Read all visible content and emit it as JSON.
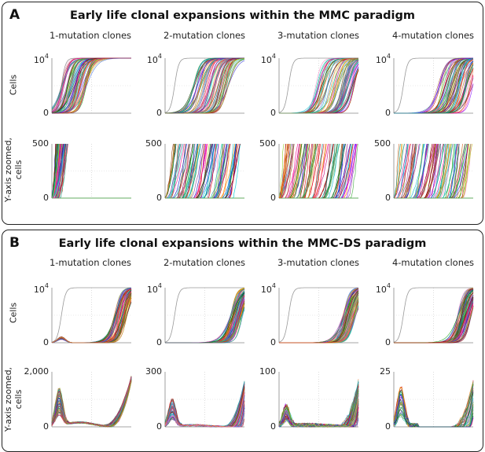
{
  "panels": [
    {
      "label": "A",
      "title": "Early life clonal expansions within the MMC paradigm",
      "rows": [
        {
          "ylabel": "Cells",
          "ylabel_lines": [
            "Cells"
          ]
        },
        {
          "ylabel": "Y-axis zoomed, cells",
          "ylabel_lines": [
            "Y-axis zoomed,",
            "cells"
          ]
        }
      ]
    },
    {
      "label": "B",
      "title": "Early life clonal expansions within the MMC-DS paradigm",
      "rows": [
        {
          "ylabel": "Cells",
          "ylabel_lines": [
            "Cells"
          ]
        },
        {
          "ylabel": "Y-axis zoomed, cells",
          "ylabel_lines": [
            "Y-axis zoomed,",
            "cells"
          ]
        }
      ]
    }
  ],
  "column_titles": [
    "1-mutation clones",
    "2-mutation clones",
    "3-mutation clones",
    "4-mutation clones"
  ],
  "chart_data": [
    {
      "type": "line",
      "panel": "A",
      "row": "full",
      "column_title": "1-mutation clones",
      "ylabel": "Cells",
      "yticks": [
        "0",
        "10^4"
      ],
      "ylim": [
        0,
        10000
      ],
      "series_description": "many colored logistic clone-growth trajectories plus a grey reference curve",
      "midpoints_range": [
        0.12,
        0.45
      ]
    },
    {
      "type": "line",
      "panel": "A",
      "row": "full",
      "column_title": "2-mutation clones",
      "ylabel": "Cells",
      "yticks": [
        "0",
        "10^4"
      ],
      "ylim": [
        0,
        10000
      ],
      "midpoints_range": [
        0.35,
        0.8
      ]
    },
    {
      "type": "line",
      "panel": "A",
      "row": "full",
      "column_title": "3-mutation clones",
      "ylabel": "Cells",
      "yticks": [
        "0",
        "10^4"
      ],
      "ylim": [
        0,
        10000
      ],
      "midpoints_range": [
        0.45,
        0.95
      ]
    },
    {
      "type": "line",
      "panel": "A",
      "row": "full",
      "column_title": "4-mutation clones",
      "ylabel": "Cells",
      "yticks": [
        "0",
        "10^4"
      ],
      "ylim": [
        0,
        10000
      ],
      "midpoints_range": [
        0.55,
        1.0
      ]
    },
    {
      "type": "line",
      "panel": "A",
      "row": "zoomed",
      "ylabel": "Y-axis zoomed, cells",
      "yticks": [
        "0",
        "500"
      ],
      "ylim": [
        0,
        500
      ],
      "reach_range": [
        0.05,
        0.2
      ]
    },
    {
      "type": "line",
      "panel": "A",
      "row": "zoomed",
      "ylabel": "Y-axis zoomed, cells",
      "yticks": [
        "0",
        "500"
      ],
      "ylim": [
        0,
        500
      ],
      "reach_range": [
        0.1,
        0.95
      ]
    },
    {
      "type": "line",
      "panel": "A",
      "row": "zoomed",
      "ylabel": "Y-axis zoomed, cells",
      "yticks": [
        "0",
        "500"
      ],
      "ylim": [
        0,
        500
      ],
      "reach_range": [
        0.05,
        1.0
      ]
    },
    {
      "type": "line",
      "panel": "A",
      "row": "zoomed",
      "ylabel": "Y-axis zoomed, cells",
      "yticks": [
        "0",
        "500"
      ],
      "ylim": [
        0,
        500
      ],
      "reach_range": [
        0.05,
        1.0
      ]
    },
    {
      "type": "line",
      "panel": "B",
      "row": "full",
      "column_title": "1-mutation clones",
      "ylabel": "Cells",
      "yticks": [
        "0",
        "10^4"
      ],
      "ylim": [
        0,
        10000
      ],
      "midpoints_range": [
        0.78,
        0.95
      ],
      "early_bump": true
    },
    {
      "type": "line",
      "panel": "B",
      "row": "full",
      "column_title": "2-mutation clones",
      "ylabel": "Cells",
      "yticks": [
        "0",
        "10^4"
      ],
      "ylim": [
        0,
        10000
      ],
      "midpoints_range": [
        0.82,
        0.98
      ]
    },
    {
      "type": "line",
      "panel": "B",
      "row": "full",
      "column_title": "3-mutation clones",
      "ylabel": "Cells",
      "yticks": [
        "0",
        "10^4"
      ],
      "ylim": [
        0,
        10000
      ],
      "midpoints_range": [
        0.8,
        0.97
      ]
    },
    {
      "type": "line",
      "panel": "B",
      "row": "full",
      "column_title": "4-mutation clones",
      "ylabel": "Cells",
      "yticks": [
        "0",
        "10^4"
      ],
      "ylim": [
        0,
        10000
      ],
      "midpoints_range": [
        0.8,
        0.98
      ]
    },
    {
      "type": "line",
      "panel": "B",
      "row": "zoomed",
      "ylabel": "Y-axis zoomed, cells",
      "yticks": [
        "0",
        "2,000"
      ],
      "ylim": [
        0,
        2000
      ],
      "bump_peak": 0.7
    },
    {
      "type": "line",
      "panel": "B",
      "row": "zoomed",
      "ylabel": "Y-axis zoomed, cells",
      "yticks": [
        "0",
        "300"
      ],
      "ylim": [
        0,
        300
      ],
      "bump_peak": 0.5
    },
    {
      "type": "line",
      "panel": "B",
      "row": "zoomed",
      "ylabel": "Y-axis zoomed, cells",
      "yticks": [
        "0",
        "100"
      ],
      "ylim": [
        0,
        100
      ],
      "bump_peak": 0.4
    },
    {
      "type": "line",
      "panel": "B",
      "row": "zoomed",
      "ylabel": "Y-axis zoomed, cells",
      "yticks": [
        "0",
        "25"
      ],
      "ylim": [
        0,
        25
      ],
      "bump_peak": 0.8
    }
  ]
}
